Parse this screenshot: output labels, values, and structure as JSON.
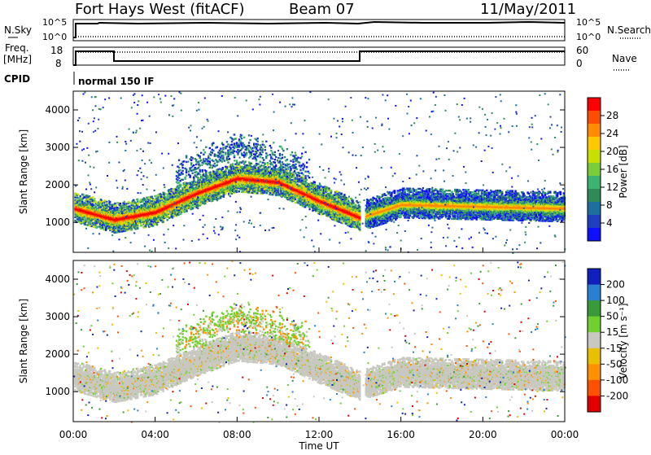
{
  "header": {
    "station": "Fort Hays West (fitACF)",
    "beam": "Beam 07",
    "date": "11/May/2011"
  },
  "status_panels": {
    "nsky_label": "N.Sky",
    "nsearch_label": "N.Search",
    "nsky_ticks": [
      "10^5",
      "10^0"
    ],
    "nsearch_ticks": [
      "10^5",
      "10^0"
    ],
    "freq_label_line1": "Freq.",
    "freq_label_line2": "[MHz]",
    "freq_ticks": [
      "18",
      "8"
    ],
    "nave_label": "Nave",
    "nave_ticks": [
      "60",
      "0"
    ],
    "cpid_label": "CPID",
    "cpid_value": "normal 150 IF"
  },
  "chart_data": [
    {
      "type": "heatmap",
      "name": "power",
      "xlabel": "Time UT",
      "ylabel": "Slant Range [km]",
      "xlim_hours": [
        0,
        24
      ],
      "ylim_km": [
        200,
        4500
      ],
      "y_ticks": [
        "1000",
        "2000",
        "3000",
        "4000"
      ],
      "colorbar_label": "Power [dB]",
      "colorbar_ticks": [
        "28",
        "24",
        "20",
        "16",
        "12",
        "8",
        "4"
      ],
      "colorbar_colors": [
        "#ff0000",
        "#ff4d00",
        "#ff8c00",
        "#ffc800",
        "#c8e000",
        "#7ccd3c",
        "#3cb371",
        "#2e8b57",
        "#1e6fa0",
        "#1f3fc0",
        "#1010ff"
      ],
      "range_bands": [
        {
          "name": "lower echo band",
          "time_hours": [
            0,
            2,
            4,
            6,
            8,
            10,
            12,
            14,
            16,
            20,
            24
          ],
          "center_km": [
            1400,
            1100,
            1300,
            1800,
            2200,
            2100,
            1600,
            1150,
            1500,
            1450,
            1400
          ]
        },
        {
          "name": "upper echo band",
          "time_hours": [
            5,
            6,
            7,
            8,
            9,
            10,
            11
          ],
          "center_km": [
            2300,
            2500,
            2800,
            3000,
            2900,
            2700,
            2500
          ]
        }
      ]
    },
    {
      "type": "heatmap",
      "name": "velocity",
      "xlabel": "Time UT",
      "ylabel": "Slant Range [km]",
      "xlim_hours": [
        0,
        24
      ],
      "ylim_km": [
        200,
        4500
      ],
      "y_ticks": [
        "1000",
        "2000",
        "3000",
        "4000"
      ],
      "colorbar_label": "Velocity [m s⁻¹]",
      "colorbar_ticks": [
        "200",
        "100",
        "50",
        "15",
        "-15",
        "-50",
        "-100",
        "-200"
      ],
      "colorbar_colors": [
        "#1020c0",
        "#2b7fd0",
        "#3a9a3a",
        "#70d030",
        "#c8c8c0",
        "#e8c000",
        "#ff9000",
        "#ff5000",
        "#e00000"
      ],
      "x_ticks": [
        "00:00",
        "04:00",
        "08:00",
        "12:00",
        "16:00",
        "20:00",
        "00:00"
      ]
    }
  ]
}
